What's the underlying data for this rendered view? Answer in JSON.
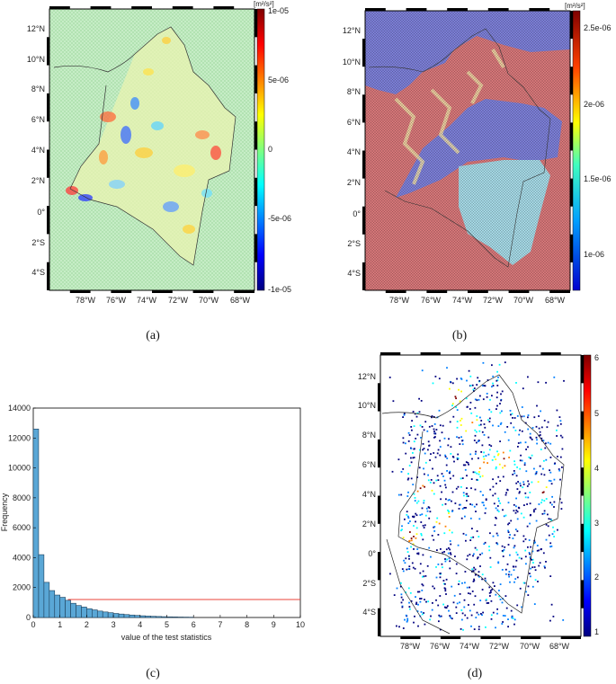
{
  "colormaps": {
    "jet": [
      "#00007f",
      "#0000ff",
      "#007fff",
      "#00ffff",
      "#7fff7f",
      "#ffff00",
      "#ff7f00",
      "#ff0000",
      "#7f0000"
    ]
  },
  "colors": {
    "histogram_bar": "#5aa7d6",
    "threshold_line": "#e8433a",
    "map_border": "#333333",
    "panel_b_high": "#d9787a",
    "panel_b_low": "#7d80d9",
    "panel_b_mid": "#a7dbe8"
  },
  "maps": {
    "lat_ticks": [
      "12°N",
      "10°N",
      "8°N",
      "6°N",
      "4°N",
      "2°N",
      "0°",
      "2°S",
      "4°S"
    ],
    "lon_ticks": [
      "78°W",
      "76°W",
      "74°W",
      "72°W",
      "70°W",
      "68°W"
    ],
    "panels": [
      {
        "id": "a",
        "caption": "(a)",
        "colorbar": {
          "unit": "[m²/s²]",
          "tick_labels": [
            "1e-05",
            "5e-06",
            "0",
            "-5e-06",
            "-1e-05"
          ]
        }
      },
      {
        "id": "b",
        "caption": "(b)",
        "colorbar": {
          "unit": "[m²/s²]",
          "tick_labels": [
            "2.5e-06",
            "2e-06",
            "1.5e-06",
            "1e-06"
          ]
        }
      },
      {
        "id": "d",
        "caption": "(d)",
        "colorbar": {
          "unit": "",
          "tick_labels": [
            "6",
            "5",
            "4",
            "3",
            "2",
            "1"
          ]
        }
      }
    ]
  },
  "chart_data": [
    {
      "panel": "(c)",
      "type": "bar",
      "caption": "(c)",
      "xlabel": "value of the test statistics",
      "ylabel": "Frequency",
      "xlim": [
        0,
        10
      ],
      "ylim": [
        0,
        14000
      ],
      "x_ticks": [
        0,
        1,
        2,
        3,
        4,
        5,
        6,
        7,
        8,
        9,
        10
      ],
      "y_ticks": [
        0,
        2000,
        4000,
        6000,
        8000,
        10000,
        12000,
        14000
      ],
      "bin_width": 0.2,
      "bin_starts": [
        0,
        0.2,
        0.4,
        0.6,
        0.8,
        1.0,
        1.2,
        1.4,
        1.6,
        1.8,
        2.0,
        2.2,
        2.4,
        2.6,
        2.8,
        3.0,
        3.2,
        3.4,
        3.6,
        3.8,
        4.0,
        4.2,
        4.4,
        4.6,
        4.8,
        5.0,
        5.2,
        5.4,
        5.6,
        5.8
      ],
      "values": [
        12600,
        4200,
        2350,
        1800,
        1500,
        1350,
        1150,
        950,
        800,
        700,
        590,
        510,
        430,
        370,
        320,
        270,
        230,
        195,
        165,
        140,
        115,
        95,
        80,
        68,
        55,
        45,
        38,
        30,
        25,
        20
      ],
      "threshold_line": {
        "x_from": 1.3,
        "x_to": 10,
        "y": 1200
      }
    }
  ]
}
